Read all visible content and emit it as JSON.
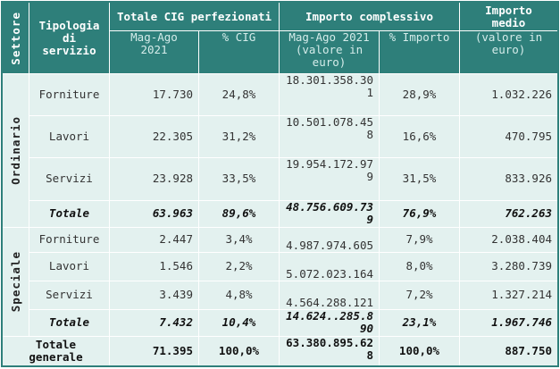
{
  "headers": {
    "settore": "Settore",
    "tipologia": "Tipologia di servizio",
    "totale_cig": "Totale CIG perfezionati",
    "importo_complessivo": "Importo complessivo",
    "importo_medio": "Importo medio",
    "mag_ago_cig": "Mag-Ago 2021",
    "pct_cig": "% CIG",
    "mag_ago_importo": "Mag-Ago 2021 (valore in euro)",
    "pct_importo": "% Importo",
    "valore_medio": "(valore in euro)"
  },
  "sections": [
    {
      "name": "Ordinario",
      "rows": [
        {
          "tipologia": "Forniture",
          "cig": "17.730",
          "pct_cig": "24,8%",
          "importo": "18.301.358.301",
          "pct_importo": "28,9%",
          "medio": "1.032.226"
        },
        {
          "tipologia": "Lavori",
          "cig": "22.305",
          "pct_cig": "31,2%",
          "importo": "10.501.078.458",
          "pct_importo": "16,6%",
          "medio": "470.795"
        },
        {
          "tipologia": "Servizi",
          "cig": "23.928",
          "pct_cig": "33,5%",
          "importo": "19.954.172.979",
          "pct_importo": "31,5%",
          "medio": "833.926"
        },
        {
          "tipologia": "Totale",
          "cig": "63.963",
          "pct_cig": "89,6%",
          "importo": "48.756.609.739",
          "pct_importo": "76,9%",
          "medio": "762.263"
        }
      ]
    },
    {
      "name": "Speciale",
      "rows": [
        {
          "tipologia": "Forniture",
          "cig": "2.447",
          "pct_cig": "3,4%",
          "importo": "4.987.974.605",
          "pct_importo": "7,9%",
          "medio": "2.038.404"
        },
        {
          "tipologia": "Lavori",
          "cig": "1.546",
          "pct_cig": "2,2%",
          "importo": "5.072.023.164",
          "pct_importo": "8,0%",
          "medio": "3.280.739"
        },
        {
          "tipologia": "Servizi",
          "cig": "3.439",
          "pct_cig": "4,8%",
          "importo": "4.564.288.121",
          "pct_importo": "7,2%",
          "medio": "1.327.214"
        },
        {
          "tipologia": "Totale",
          "cig": "7.432",
          "pct_cig": "10,4%",
          "importo": "14.624..285.890",
          "pct_importo": "23,1%",
          "medio": "1.967.746"
        }
      ]
    }
  ],
  "grand_total": {
    "label": "Totale generale",
    "cig": "71.395",
    "pct_cig": "100,0%",
    "importo": "63.380.895.628",
    "pct_importo": "100,0%",
    "medio": "887.750"
  }
}
